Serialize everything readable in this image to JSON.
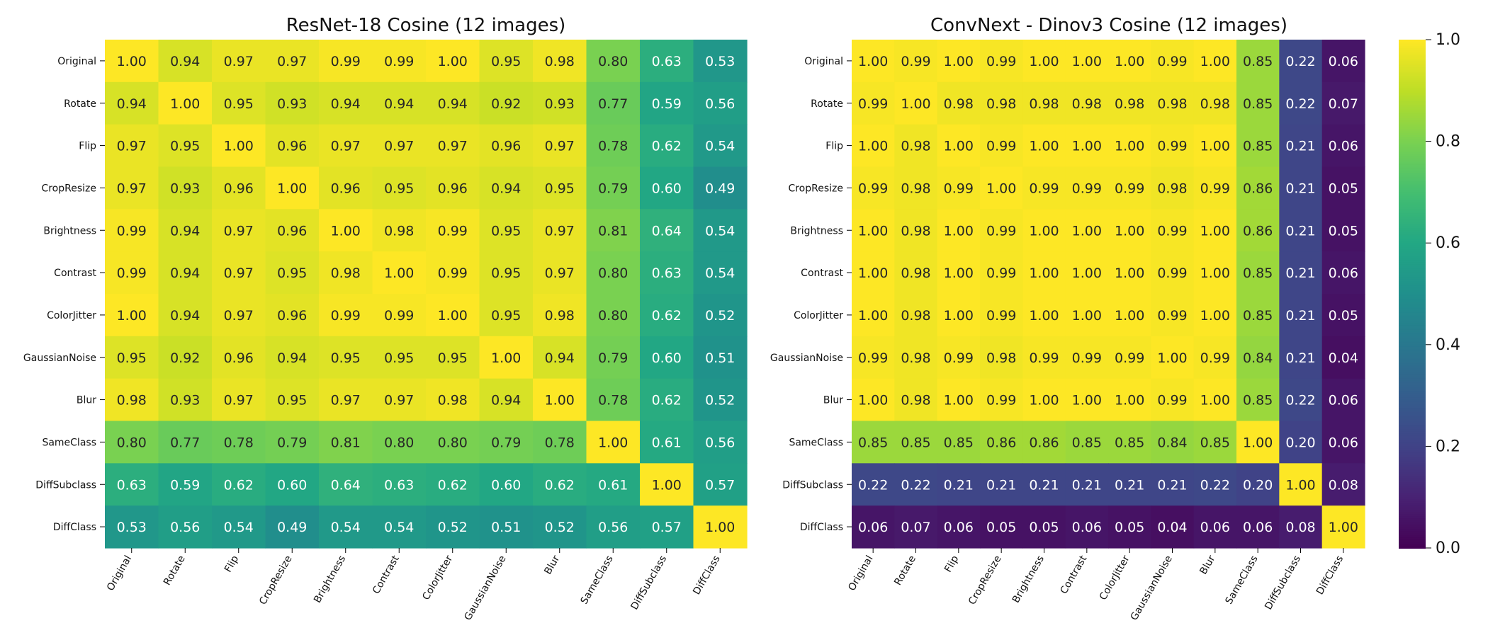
{
  "figure": {
    "left_title": "ResNet-18 Cosine (12 images)",
    "right_title": "ConvNext - Dinov3 Cosine (12 images)"
  },
  "chart_data": [
    {
      "type": "heatmap",
      "title": "ResNet-18 Cosine (12 images)",
      "xlabel": "",
      "ylabel": "",
      "x_categories": [
        "Original",
        "Rotate",
        "Flip",
        "CropResize",
        "Brightness",
        "Contrast",
        "ColorJitter",
        "GaussianNoise",
        "Blur",
        "SameClass",
        "DiffSubclass",
        "DiffClass"
      ],
      "y_categories": [
        "Original",
        "Rotate",
        "Flip",
        "CropResize",
        "Brightness",
        "Contrast",
        "ColorJitter",
        "GaussianNoise",
        "Blur",
        "SameClass",
        "DiffSubclass",
        "DiffClass"
      ],
      "values": [
        [
          1.0,
          0.94,
          0.97,
          0.97,
          0.99,
          0.99,
          1.0,
          0.95,
          0.98,
          0.8,
          0.63,
          0.53
        ],
        [
          0.94,
          1.0,
          0.95,
          0.93,
          0.94,
          0.94,
          0.94,
          0.92,
          0.93,
          0.77,
          0.59,
          0.56
        ],
        [
          0.97,
          0.95,
          1.0,
          0.96,
          0.97,
          0.97,
          0.97,
          0.96,
          0.97,
          0.78,
          0.62,
          0.54
        ],
        [
          0.97,
          0.93,
          0.96,
          1.0,
          0.96,
          0.95,
          0.96,
          0.94,
          0.95,
          0.79,
          0.6,
          0.49
        ],
        [
          0.99,
          0.94,
          0.97,
          0.96,
          1.0,
          0.98,
          0.99,
          0.95,
          0.97,
          0.81,
          0.64,
          0.54
        ],
        [
          0.99,
          0.94,
          0.97,
          0.95,
          0.98,
          1.0,
          0.99,
          0.95,
          0.97,
          0.8,
          0.63,
          0.54
        ],
        [
          1.0,
          0.94,
          0.97,
          0.96,
          0.99,
          0.99,
          1.0,
          0.95,
          0.98,
          0.8,
          0.62,
          0.52
        ],
        [
          0.95,
          0.92,
          0.96,
          0.94,
          0.95,
          0.95,
          0.95,
          1.0,
          0.94,
          0.79,
          0.6,
          0.51
        ],
        [
          0.98,
          0.93,
          0.97,
          0.95,
          0.97,
          0.97,
          0.98,
          0.94,
          1.0,
          0.78,
          0.62,
          0.52
        ],
        [
          0.8,
          0.77,
          0.78,
          0.79,
          0.81,
          0.8,
          0.8,
          0.79,
          0.78,
          1.0,
          0.61,
          0.56
        ],
        [
          0.63,
          0.59,
          0.62,
          0.6,
          0.64,
          0.63,
          0.62,
          0.6,
          0.62,
          0.61,
          1.0,
          0.57
        ],
        [
          0.53,
          0.56,
          0.54,
          0.49,
          0.54,
          0.54,
          0.52,
          0.51,
          0.52,
          0.56,
          0.57,
          1.0
        ]
      ],
      "value_range": [
        0,
        1
      ],
      "colormap": "viridis",
      "grid": false
    },
    {
      "type": "heatmap",
      "title": "ConvNext - Dinov3 Cosine (12 images)",
      "xlabel": "",
      "ylabel": "",
      "x_categories": [
        "Original",
        "Rotate",
        "Flip",
        "CropResize",
        "Brightness",
        "Contrast",
        "ColorJitter",
        "GaussianNoise",
        "Blur",
        "SameClass",
        "DiffSubclass",
        "DiffClass"
      ],
      "y_categories": [
        "Original",
        "Rotate",
        "Flip",
        "CropResize",
        "Brightness",
        "Contrast",
        "ColorJitter",
        "GaussianNoise",
        "Blur",
        "SameClass",
        "DiffSubclass",
        "DiffClass"
      ],
      "values": [
        [
          1.0,
          0.99,
          1.0,
          0.99,
          1.0,
          1.0,
          1.0,
          0.99,
          1.0,
          0.85,
          0.22,
          0.06
        ],
        [
          0.99,
          1.0,
          0.98,
          0.98,
          0.98,
          0.98,
          0.98,
          0.98,
          0.98,
          0.85,
          0.22,
          0.07
        ],
        [
          1.0,
          0.98,
          1.0,
          0.99,
          1.0,
          1.0,
          1.0,
          0.99,
          1.0,
          0.85,
          0.21,
          0.06
        ],
        [
          0.99,
          0.98,
          0.99,
          1.0,
          0.99,
          0.99,
          0.99,
          0.98,
          0.99,
          0.86,
          0.21,
          0.05
        ],
        [
          1.0,
          0.98,
          1.0,
          0.99,
          1.0,
          1.0,
          1.0,
          0.99,
          1.0,
          0.86,
          0.21,
          0.05
        ],
        [
          1.0,
          0.98,
          1.0,
          0.99,
          1.0,
          1.0,
          1.0,
          0.99,
          1.0,
          0.85,
          0.21,
          0.06
        ],
        [
          1.0,
          0.98,
          1.0,
          0.99,
          1.0,
          1.0,
          1.0,
          0.99,
          1.0,
          0.85,
          0.21,
          0.05
        ],
        [
          0.99,
          0.98,
          0.99,
          0.98,
          0.99,
          0.99,
          0.99,
          1.0,
          0.99,
          0.84,
          0.21,
          0.04
        ],
        [
          1.0,
          0.98,
          1.0,
          0.99,
          1.0,
          1.0,
          1.0,
          0.99,
          1.0,
          0.85,
          0.22,
          0.06
        ],
        [
          0.85,
          0.85,
          0.85,
          0.86,
          0.86,
          0.85,
          0.85,
          0.84,
          0.85,
          1.0,
          0.2,
          0.06
        ],
        [
          0.22,
          0.22,
          0.21,
          0.21,
          0.21,
          0.21,
          0.21,
          0.21,
          0.22,
          0.2,
          1.0,
          0.08
        ],
        [
          0.06,
          0.07,
          0.06,
          0.05,
          0.05,
          0.06,
          0.05,
          0.04,
          0.06,
          0.06,
          0.08,
          1.0
        ]
      ],
      "value_range": [
        0,
        1
      ],
      "colormap": "viridis",
      "grid": false
    }
  ],
  "colorbar": {
    "ticks": [
      0.0,
      0.2,
      0.4,
      0.6,
      0.8,
      1.0
    ],
    "tick_labels": [
      "0.0",
      "0.2",
      "0.4",
      "0.6",
      "0.8",
      "1.0"
    ],
    "range": [
      0,
      1
    ],
    "colormap": "viridis"
  }
}
